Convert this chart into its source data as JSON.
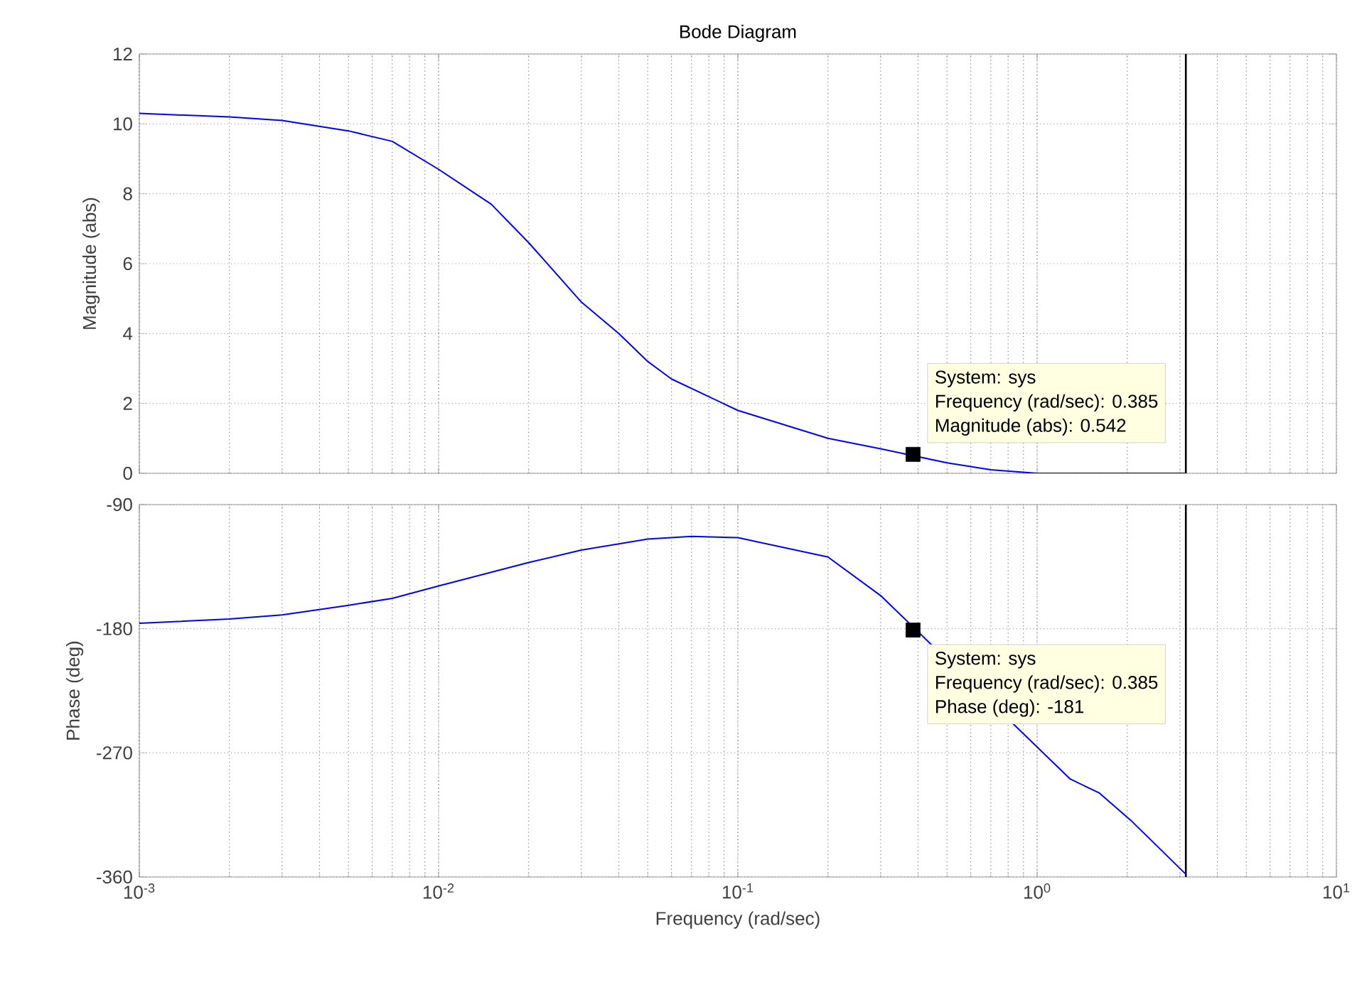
{
  "chart_data": [
    {
      "type": "line",
      "title": "Bode Diagram",
      "ylabel": "Magnitude (abs)",
      "log": "x",
      "grid": true,
      "tick_labels": "y",
      "xlim": [
        0.001,
        10
      ],
      "xticks": [
        {
          "value": 0.001,
          "label": null
        },
        {
          "value": 0.01,
          "label": null
        },
        {
          "value": 0.1,
          "label": null
        },
        {
          "value": 1,
          "label": null
        },
        {
          "value": 10,
          "label": null
        }
      ],
      "ylim": [
        0,
        12
      ],
      "yticks": [
        0,
        2,
        4,
        6,
        8,
        10,
        12
      ],
      "ref_lines": [
        {
          "axis": "x",
          "value": 3.14,
          "color": "#000000"
        }
      ],
      "series": [
        {
          "color": "#0000ff",
          "x": [
            0.001,
            0.002,
            0.003,
            0.005,
            0.007,
            0.01,
            0.015,
            0.02,
            0.03,
            0.04,
            0.05,
            0.06,
            0.1,
            0.2,
            0.3,
            0.5,
            0.7,
            1,
            3.14
          ],
          "values": [
            10.3,
            10.2,
            10.1,
            9.8,
            9.5,
            8.7,
            7.7,
            6.6,
            4.9,
            4.0,
            3.2,
            2.7,
            1.8,
            1.0,
            0.7,
            0.3,
            0.1,
            0.0,
            0.0
          ]
        },
        {
          "type": "scatter",
          "color": "#000000",
          "marker": "square",
          "x": [
            0.385
          ],
          "values": [
            0.542
          ]
        }
      ],
      "annotations": [
        "System: sys",
        "Frequency (rad/sec): 0.385",
        "Magnitude (abs): 0.542"
      ]
    },
    {
      "type": "line",
      "xlabel": "Frequency  (rad/sec)",
      "ylabel": "Phase (deg)",
      "log": "x",
      "grid": true,
      "xlim": [
        0.001,
        10
      ],
      "xticks": [
        {
          "value": 0.001,
          "label": "10$^{-3}$"
        },
        {
          "value": 0.01,
          "label": "10$^{-2}$"
        },
        {
          "value": 0.1,
          "label": "10$^{-1}$"
        },
        {
          "value": 1,
          "label": "10$^{0}$"
        },
        {
          "value": 10,
          "label": "10$^{1}$"
        }
      ],
      "ylim": [
        -360,
        -90
      ],
      "yticks": [
        -360,
        -270,
        -180,
        -90
      ],
      "ref_lines": [
        {
          "axis": "x",
          "value": 3.14,
          "color": "#000000"
        }
      ],
      "series": [
        {
          "color": "#0000ff",
          "x": [
            0.001,
            0.002,
            0.003,
            0.005,
            0.007,
            0.01,
            0.02,
            0.03,
            0.05,
            0.07,
            0.1,
            0.2,
            0.3,
            1.29,
            1.61,
            2.08,
            3.14
          ],
          "values": [
            -176,
            -173,
            -170,
            -163,
            -158,
            -149,
            -132,
            -123,
            -115,
            -113,
            -114,
            -128,
            -156,
            -289,
            -299,
            -320,
            -358
          ]
        },
        {
          "type": "scatter",
          "color": "#000000",
          "marker": "square",
          "x": [
            0.385
          ],
          "values": [
            -181
          ]
        }
      ],
      "annotations": [
        "System: sys",
        "Frequency (rad/sec): 0.385",
        "Phase (deg): -181"
      ]
    }
  ]
}
